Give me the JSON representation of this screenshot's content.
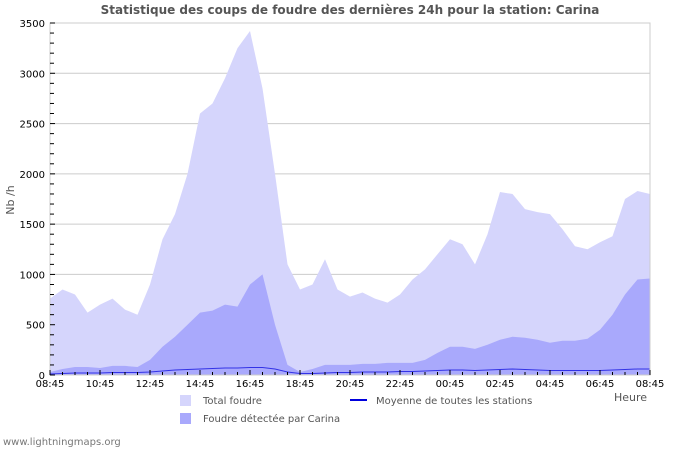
{
  "title": "Statistique des coups de foudre des dernières 24h pour la station: Carina",
  "footer": "www.lightningmaps.org",
  "colors": {
    "total": "#d5d5fc",
    "station": "#a9a9fc",
    "average": "#0000dd",
    "grid": "#cccccc"
  },
  "chart_data": {
    "type": "area",
    "title": "Statistique des coups de foudre des dernières 24h pour la station: Carina",
    "xlabel": "Heure",
    "ylabel": "Nb /h",
    "ylim": [
      0,
      3500
    ],
    "yticks": [
      0,
      500,
      1000,
      1500,
      2000,
      2500,
      3000,
      3500
    ],
    "xtick_labels": [
      "08:45",
      "10:45",
      "12:45",
      "14:45",
      "16:45",
      "18:45",
      "20:45",
      "22:45",
      "00:45",
      "02:45",
      "04:45",
      "06:45",
      "08:45"
    ],
    "grid": true,
    "legend_position": "bottom",
    "x": [
      "08:45",
      "09:15",
      "09:45",
      "10:15",
      "10:45",
      "11:15",
      "11:45",
      "12:15",
      "12:45",
      "13:15",
      "13:45",
      "14:15",
      "14:45",
      "15:15",
      "15:45",
      "16:15",
      "16:45",
      "17:15",
      "17:45",
      "18:15",
      "18:45",
      "19:15",
      "19:45",
      "20:15",
      "20:45",
      "21:15",
      "21:45",
      "22:15",
      "22:45",
      "23:15",
      "23:45",
      "00:15",
      "00:45",
      "01:15",
      "01:45",
      "02:15",
      "02:45",
      "03:15",
      "03:45",
      "04:15",
      "04:45",
      "05:15",
      "05:45",
      "06:15",
      "06:45",
      "07:15",
      "07:45",
      "08:15",
      "08:45"
    ],
    "series": [
      {
        "name": "Total foudre",
        "style": "area",
        "values": [
          760,
          850,
          800,
          620,
          700,
          760,
          650,
          600,
          900,
          1350,
          1600,
          2000,
          2600,
          2700,
          2950,
          3250,
          3420,
          2850,
          2000,
          1100,
          850,
          900,
          1150,
          850,
          780,
          820,
          760,
          720,
          800,
          950,
          1050,
          1200,
          1350,
          1300,
          1100,
          1400,
          1820,
          1800,
          1650,
          1620,
          1600,
          1450,
          1280,
          1250,
          1320,
          1380,
          1750,
          1830,
          1800
        ]
      },
      {
        "name": "Foudre détectée par Carina",
        "style": "area",
        "values": [
          30,
          60,
          80,
          80,
          70,
          90,
          90,
          80,
          150,
          280,
          380,
          500,
          620,
          640,
          700,
          680,
          900,
          1000,
          500,
          100,
          30,
          60,
          100,
          100,
          100,
          110,
          110,
          120,
          120,
          120,
          150,
          220,
          280,
          280,
          260,
          300,
          350,
          380,
          370,
          350,
          320,
          340,
          340,
          360,
          450,
          600,
          800,
          950,
          960
        ]
      },
      {
        "name": "Moyenne de toutes les stations",
        "style": "line",
        "values": [
          10,
          15,
          20,
          20,
          20,
          25,
          25,
          25,
          30,
          40,
          50,
          55,
          60,
          65,
          70,
          70,
          75,
          75,
          60,
          30,
          15,
          15,
          20,
          25,
          25,
          30,
          30,
          30,
          35,
          35,
          40,
          45,
          50,
          50,
          45,
          50,
          55,
          60,
          55,
          50,
          45,
          45,
          45,
          45,
          45,
          50,
          55,
          60,
          60
        ]
      }
    ]
  },
  "legend": {
    "total": "Total foudre",
    "station": "Foudre détectée par Carina",
    "average": "Moyenne de toutes les stations"
  }
}
